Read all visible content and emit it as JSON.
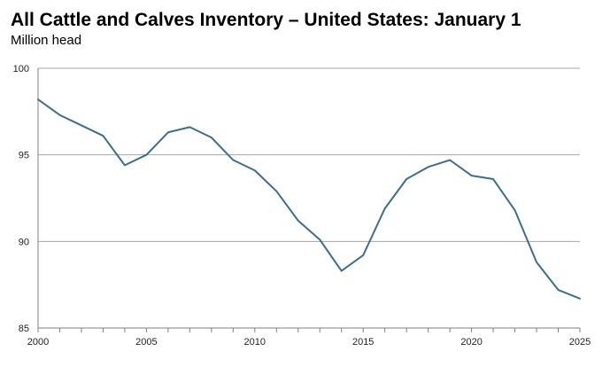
{
  "chart_data": {
    "type": "line",
    "title": "All Cattle and Calves Inventory – United States: January 1",
    "subtitle": "Million head",
    "xlabel": "",
    "ylabel": "",
    "xlim": [
      2000,
      2025
    ],
    "ylim": [
      85,
      100
    ],
    "x_ticks": [
      "2000",
      "2005",
      "2010",
      "2015",
      "2020",
      "2025"
    ],
    "y_ticks": [
      "85",
      "90",
      "95",
      "100"
    ],
    "grid": "horizontal",
    "legend": "none",
    "line_color": "#3d6e8a",
    "series": [
      {
        "x": [
          2000,
          2001,
          2002,
          2003,
          2004,
          2005,
          2006,
          2007,
          2008,
          2009,
          2010,
          2011,
          2012,
          2013,
          2014,
          2015,
          2016,
          2017,
          2018,
          2019,
          2020,
          2021,
          2022,
          2023,
          2024,
          2025
        ],
        "values": [
          98.2,
          97.3,
          96.7,
          96.1,
          94.4,
          95.0,
          96.3,
          96.6,
          96.0,
          94.7,
          94.1,
          92.9,
          91.2,
          90.1,
          88.3,
          89.2,
          91.9,
          93.6,
          94.3,
          94.7,
          93.8,
          93.6,
          91.8,
          88.8,
          87.2,
          86.7
        ]
      }
    ]
  }
}
